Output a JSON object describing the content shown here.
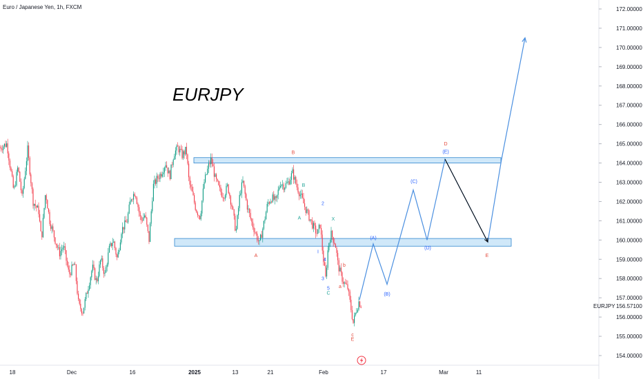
{
  "header": {
    "symbol": "Euro / Japanese Yen, 1h, FXCM"
  },
  "annotation": {
    "title": "EURJPY"
  },
  "price_label": {
    "name": "EURJPY",
    "value": "156.57100"
  },
  "colors": {
    "up": "#089981",
    "down": "#f23645",
    "zone_fill": "#c4e2f7",
    "zone_stroke": "#2f86cf",
    "projection": "#4a8fe0",
    "arrow": "#000000",
    "wave_red": "#e3483b",
    "wave_teal": "#26a69a",
    "wave_blue": "#2962ff"
  },
  "icons": {
    "bottom_badge": "lightning-icon"
  },
  "chart_data": {
    "type": "candlestick",
    "title": "",
    "ylim": [
      153.7,
      172.3
    ],
    "xlim": [
      0,
      925
    ],
    "y_ticks": [
      "172.00000",
      "171.00000",
      "170.00000",
      "169.00000",
      "168.00000",
      "167.00000",
      "166.00000",
      "165.00000",
      "164.00000",
      "163.00000",
      "162.00000",
      "161.00000",
      "160.00000",
      "159.00000",
      "158.00000",
      "157.00000",
      "156.00000",
      "155.00000",
      "154.00000"
    ],
    "x_ticks": [
      {
        "label": "18",
        "x": 18,
        "bold": false
      },
      {
        "label": "Dec",
        "x": 104,
        "bold": false
      },
      {
        "label": "16",
        "x": 192,
        "bold": false
      },
      {
        "label": "2025",
        "x": 282,
        "bold": true
      },
      {
        "label": "13",
        "x": 341,
        "bold": false
      },
      {
        "label": "21",
        "x": 392,
        "bold": false
      },
      {
        "label": "Feb",
        "x": 469,
        "bold": false
      },
      {
        "label": "17",
        "x": 556,
        "bold": false
      },
      {
        "label": "Mar",
        "x": 643,
        "bold": false
      },
      {
        "label": "11",
        "x": 694,
        "bold": false
      }
    ],
    "price_path": [
      [
        0,
        164.8
      ],
      [
        10,
        165.0
      ],
      [
        14,
        164.0
      ],
      [
        20,
        162.5
      ],
      [
        26,
        163.8
      ],
      [
        32,
        162.2
      ],
      [
        40,
        164.7
      ],
      [
        48,
        162.0
      ],
      [
        56,
        161.5
      ],
      [
        60,
        160.0
      ],
      [
        66,
        162.5
      ],
      [
        72,
        161.0
      ],
      [
        80,
        160.0
      ],
      [
        86,
        159.3
      ],
      [
        92,
        159.7
      ],
      [
        100,
        158.2
      ],
      [
        108,
        158.8
      ],
      [
        114,
        156.6
      ],
      [
        120,
        156.3
      ],
      [
        128,
        157.6
      ],
      [
        134,
        158.6
      ],
      [
        140,
        157.8
      ],
      [
        146,
        159.0
      ],
      [
        152,
        158.2
      ],
      [
        158,
        159.5
      ],
      [
        164,
        160.0
      ],
      [
        170,
        159.0
      ],
      [
        176,
        160.5
      ],
      [
        184,
        161.0
      ],
      [
        190,
        162.2
      ],
      [
        196,
        162.5
      ],
      [
        204,
        161.0
      ],
      [
        210,
        161.3
      ],
      [
        216,
        160.0
      ],
      [
        222,
        162.8
      ],
      [
        228,
        163.2
      ],
      [
        234,
        163.5
      ],
      [
        240,
        164.0
      ],
      [
        246,
        163.3
      ],
      [
        252,
        164.5
      ],
      [
        258,
        164.8
      ],
      [
        264,
        164.4
      ],
      [
        270,
        164.7
      ],
      [
        274,
        163.0
      ],
      [
        278,
        162.5
      ],
      [
        284,
        161.6
      ],
      [
        290,
        161.2
      ],
      [
        296,
        163.0
      ],
      [
        302,
        163.8
      ],
      [
        306,
        164.2
      ],
      [
        312,
        163.2
      ],
      [
        318,
        162.6
      ],
      [
        324,
        162.3
      ],
      [
        330,
        162.8
      ],
      [
        336,
        161.8
      ],
      [
        342,
        160.4
      ],
      [
        348,
        162.5
      ],
      [
        352,
        163.0
      ],
      [
        358,
        161.8
      ],
      [
        364,
        161.0
      ],
      [
        370,
        160.4
      ],
      [
        376,
        159.8
      ],
      [
        382,
        160.8
      ],
      [
        388,
        161.9
      ],
      [
        394,
        162.2
      ],
      [
        400,
        162.0
      ],
      [
        406,
        163.0
      ],
      [
        412,
        162.8
      ],
      [
        418,
        163.0
      ],
      [
        424,
        163.5
      ],
      [
        430,
        162.8
      ],
      [
        436,
        162.3
      ],
      [
        442,
        161.7
      ],
      [
        448,
        161.2
      ],
      [
        454,
        160.7
      ],
      [
        460,
        160.3
      ],
      [
        464,
        160.8
      ],
      [
        468,
        159.2
      ],
      [
        472,
        158.0
      ],
      [
        476,
        159.8
      ],
      [
        480,
        160.3
      ],
      [
        486,
        159.8
      ],
      [
        490,
        158.7
      ],
      [
        494,
        158.2
      ],
      [
        498,
        157.8
      ],
      [
        504,
        157.5
      ],
      [
        508,
        156.6
      ],
      [
        512,
        155.7
      ],
      [
        516,
        156.3
      ],
      [
        520,
        156.8
      ],
      [
        524,
        156.57
      ]
    ],
    "zones": [
      {
        "name": "resistance-zone",
        "x1": 281,
        "x2": 726,
        "y_top": 164.28,
        "y_bottom": 164.0
      },
      {
        "name": "support-zone",
        "x1": 253,
        "x2": 741,
        "y_top": 160.08,
        "y_bottom": 159.68
      }
    ],
    "projection_path": [
      [
        521,
        156.9
      ],
      [
        541,
        159.8
      ],
      [
        561,
        157.7
      ],
      [
        599,
        162.6
      ],
      [
        619,
        160.0
      ],
      [
        645,
        164.2
      ],
      [
        707,
        159.9
      ],
      [
        727,
        164.2
      ],
      [
        761,
        170.5
      ]
    ],
    "arrow_path": [
      [
        645,
        164.2
      ],
      [
        707,
        159.9
      ]
    ],
    "wave_labels": [
      {
        "text": "B",
        "x": 425,
        "price": 164.55,
        "color": "red"
      },
      {
        "text": "B",
        "x": 440,
        "price": 162.85,
        "color": "teal"
      },
      {
        "text": "A",
        "x": 434,
        "price": 161.15,
        "color": "teal"
      },
      {
        "text": "A",
        "x": 371,
        "price": 159.2,
        "color": "red"
      },
      {
        "text": "2",
        "x": 468,
        "price": 161.9,
        "color": "blue"
      },
      {
        "text": "X",
        "x": 483,
        "price": 161.1,
        "color": "teal"
      },
      {
        "text": "I",
        "x": 461,
        "price": 159.4,
        "color": "blue"
      },
      {
        "text": "4",
        "x": 471,
        "price": 159.0,
        "color": "blue"
      },
      {
        "text": "b",
        "x": 499,
        "price": 158.7,
        "color": "red"
      },
      {
        "text": "3",
        "x": 468,
        "price": 158.0,
        "color": "blue"
      },
      {
        "text": "a",
        "x": 493,
        "price": 157.6,
        "color": "red"
      },
      {
        "text": "5",
        "x": 476,
        "price": 157.5,
        "color": "blue"
      },
      {
        "text": "C",
        "x": 476,
        "price": 157.25,
        "color": "teal"
      },
      {
        "text": "c",
        "x": 511,
        "price": 155.1,
        "color": "red"
      },
      {
        "text": "E",
        "x": 511,
        "price": 154.85,
        "color": "red"
      },
      {
        "text": "(A)",
        "x": 541,
        "price": 160.12,
        "color": "blue"
      },
      {
        "text": "(B)",
        "x": 561,
        "price": 157.2,
        "color": "blue"
      },
      {
        "text": "(C)",
        "x": 600,
        "price": 163.05,
        "color": "blue"
      },
      {
        "text": "(D)",
        "x": 620,
        "price": 159.6,
        "color": "blue"
      },
      {
        "text": "D",
        "x": 646,
        "price": 165.0,
        "color": "red"
      },
      {
        "text": "(E)",
        "x": 646,
        "price": 164.6,
        "color": "blue"
      },
      {
        "text": "E",
        "x": 706,
        "price": 159.2,
        "color": "red"
      }
    ]
  }
}
